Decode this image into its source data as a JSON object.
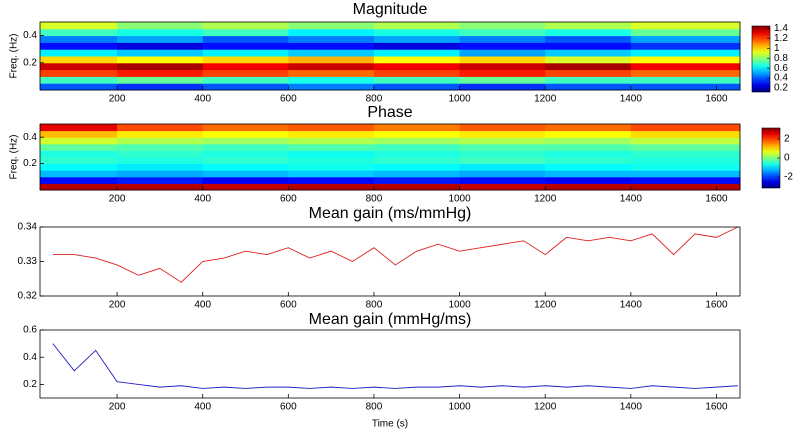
{
  "chart_data": [
    {
      "type": "heatmap",
      "title": "Magnitude",
      "ylabel": "Freq. (Hz)",
      "colormap": "jet",
      "x": [
        100,
        300,
        500,
        700,
        900,
        1100,
        1300,
        1500
      ],
      "y": [
        0.025,
        0.075,
        0.125,
        0.175,
        0.225,
        0.275,
        0.325,
        0.375,
        0.425,
        0.475
      ],
      "z": [
        [
          0.4,
          0.35,
          0.4,
          0.45,
          0.4,
          0.35,
          0.4,
          0.4
        ],
        [
          0.7,
          0.75,
          0.7,
          0.65,
          0.7,
          0.75,
          0.7,
          0.7
        ],
        [
          1.2,
          1.25,
          1.2,
          1.15,
          1.2,
          1.25,
          1.2,
          1.15
        ],
        [
          1.35,
          1.4,
          1.3,
          1.35,
          1.3,
          1.35,
          1.4,
          1.3
        ],
        [
          1.0,
          0.95,
          1.0,
          1.05,
          0.95,
          1.0,
          0.9,
          0.95
        ],
        [
          0.6,
          0.55,
          0.6,
          0.55,
          0.6,
          0.5,
          0.55,
          0.6
        ],
        [
          0.3,
          0.25,
          0.3,
          0.3,
          0.25,
          0.3,
          0.3,
          0.35
        ],
        [
          0.45,
          0.5,
          0.4,
          0.45,
          0.5,
          0.45,
          0.4,
          0.5
        ],
        [
          0.7,
          0.65,
          0.7,
          0.6,
          0.65,
          0.7,
          0.65,
          0.75
        ],
        [
          0.9,
          0.8,
          0.85,
          0.8,
          0.85,
          0.8,
          0.85,
          0.9
        ]
      ],
      "zlim": [
        0.12,
        1.45
      ],
      "cticks": [
        0.2,
        0.4,
        0.6,
        0.8,
        1,
        1.2,
        1.4
      ],
      "xlim": [
        20,
        1655
      ],
      "xticks": [
        200,
        400,
        600,
        800,
        1000,
        1200,
        1400,
        1600
      ],
      "ylim": [
        0,
        0.5
      ],
      "yticks": [
        0.2,
        0.4
      ]
    },
    {
      "type": "heatmap",
      "title": "Phase",
      "ylabel": "Freq. (Hz)",
      "colormap": "jet",
      "x": [
        100,
        300,
        500,
        700,
        900,
        1100,
        1300,
        1500
      ],
      "y": [
        0.025,
        0.075,
        0.125,
        0.175,
        0.225,
        0.275,
        0.325,
        0.375,
        0.425,
        0.475
      ],
      "z": [
        [
          2.8,
          2.8,
          2.7,
          2.8,
          2.8,
          2.7,
          2.8,
          2.8
        ],
        [
          -2.3,
          -2.2,
          -2.4,
          -2.3,
          -2.2,
          -2.3,
          -2.4,
          -2.3
        ],
        [
          -1.2,
          -1.3,
          -1.2,
          -1.1,
          -1.2,
          -1.3,
          -1.2,
          -1.2
        ],
        [
          -0.8,
          -0.9,
          -0.8,
          -0.7,
          -0.8,
          -0.9,
          -0.8,
          -0.7
        ],
        [
          -0.5,
          -0.6,
          -0.5,
          -0.6,
          -0.5,
          -0.4,
          -0.5,
          -0.6
        ],
        [
          -0.6,
          -0.5,
          -0.6,
          -0.7,
          -0.6,
          -0.5,
          -0.6,
          -0.5
        ],
        [
          -0.2,
          -0.3,
          -0.4,
          -0.3,
          -0.4,
          -0.3,
          -0.3,
          -0.2
        ],
        [
          0.5,
          0.3,
          0.2,
          0.3,
          0.2,
          0.3,
          0.2,
          0.4
        ],
        [
          1.2,
          0.9,
          0.8,
          0.9,
          0.8,
          0.9,
          0.8,
          1.0
        ],
        [
          2.5,
          1.9,
          1.7,
          1.8,
          1.6,
          1.8,
          1.7,
          1.9
        ]
      ],
      "zlim": [
        -3.14,
        3.14
      ],
      "cticks": [
        -2,
        0,
        2
      ],
      "xlim": [
        20,
        1655
      ],
      "xticks": [
        200,
        400,
        600,
        800,
        1000,
        1200,
        1400,
        1600
      ],
      "ylim": [
        0,
        0.5
      ],
      "yticks": [
        0.2,
        0.4
      ]
    },
    {
      "type": "line",
      "title": "Mean gain (ms/mmHg)",
      "color": "#e02020",
      "x": [
        50,
        100,
        150,
        200,
        250,
        300,
        350,
        400,
        450,
        500,
        550,
        600,
        650,
        700,
        750,
        800,
        850,
        900,
        950,
        1000,
        1050,
        1100,
        1150,
        1200,
        1250,
        1300,
        1350,
        1400,
        1450,
        1500,
        1550,
        1600,
        1650
      ],
      "values": [
        0.332,
        0.332,
        0.331,
        0.329,
        0.326,
        0.328,
        0.324,
        0.33,
        0.331,
        0.333,
        0.332,
        0.334,
        0.331,
        0.333,
        0.33,
        0.334,
        0.329,
        0.333,
        0.335,
        0.333,
        0.334,
        0.335,
        0.336,
        0.332,
        0.337,
        0.336,
        0.337,
        0.336,
        0.338,
        0.332,
        0.338,
        0.337,
        0.34
      ],
      "xlim": [
        20,
        1655
      ],
      "xticks": [
        200,
        400,
        600,
        800,
        1000,
        1200,
        1400,
        1600
      ],
      "ylim": [
        0.32,
        0.34
      ],
      "yticks": [
        0.32,
        0.33,
        0.34
      ]
    },
    {
      "type": "line",
      "title": "Mean gain (mmHg/ms)",
      "xlabel": "Time (s)",
      "color": "#2020c0",
      "x": [
        50,
        100,
        150,
        200,
        250,
        300,
        350,
        400,
        450,
        500,
        550,
        600,
        650,
        700,
        750,
        800,
        850,
        900,
        950,
        1000,
        1050,
        1100,
        1150,
        1200,
        1250,
        1300,
        1350,
        1400,
        1450,
        1500,
        1550,
        1600,
        1650
      ],
      "values": [
        0.5,
        0.3,
        0.45,
        0.22,
        0.2,
        0.18,
        0.19,
        0.17,
        0.18,
        0.17,
        0.18,
        0.18,
        0.17,
        0.18,
        0.17,
        0.18,
        0.17,
        0.18,
        0.18,
        0.19,
        0.18,
        0.19,
        0.18,
        0.19,
        0.18,
        0.19,
        0.18,
        0.17,
        0.19,
        0.18,
        0.17,
        0.18,
        0.19
      ],
      "xlim": [
        20,
        1655
      ],
      "xticks": [
        200,
        400,
        600,
        800,
        1000,
        1200,
        1400,
        1600
      ],
      "ylim": [
        0.1,
        0.6
      ],
      "yticks": [
        0.2,
        0.4,
        0.6
      ]
    }
  ]
}
